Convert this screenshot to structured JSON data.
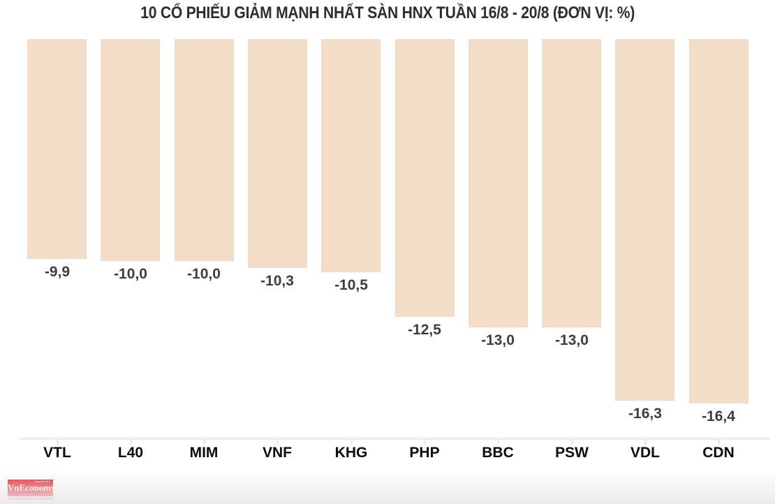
{
  "chart_data": {
    "type": "bar",
    "title": "10 CỔ PHIẾU GIẢM MẠNH NHẤT SÀN HNX TUẦN 16/8 - 20/8 (ĐƠN VỊ: %)",
    "categories": [
      "VTL",
      "L40",
      "MIM",
      "VNF",
      "KHG",
      "PHP",
      "BBC",
      "PSW",
      "VDL",
      "CDN"
    ],
    "values": [
      -9.9,
      -10.0,
      -10.0,
      -10.3,
      -10.5,
      -12.5,
      -13.0,
      -13.0,
      -16.3,
      -16.4
    ],
    "value_labels": [
      "-9,9",
      "-10,0",
      "-10,0",
      "-10,3",
      "-10,5",
      "-12,5",
      "-13,0",
      "-13,0",
      "-16,3",
      "-16,4"
    ],
    "xlabel": "",
    "ylabel": "",
    "ylim": [
      -16.4,
      0
    ],
    "grid": false,
    "legend": false,
    "bar_color": "#f3dcc8",
    "orientation": "columns-hanging-from-zero-top"
  },
  "branding": {
    "logo_text": "VnEconomy",
    "logo_bg_color": "#ee1c25",
    "logo_text_color": "#ffffff"
  },
  "colors": {
    "background": "#ffffff",
    "title_text": "#2e2e2e",
    "value_label_text": "#3e3e3e",
    "category_label_text": "#0d0d0d",
    "axis_line": "#ededed",
    "bottom_fade": "#eaeaea"
  }
}
